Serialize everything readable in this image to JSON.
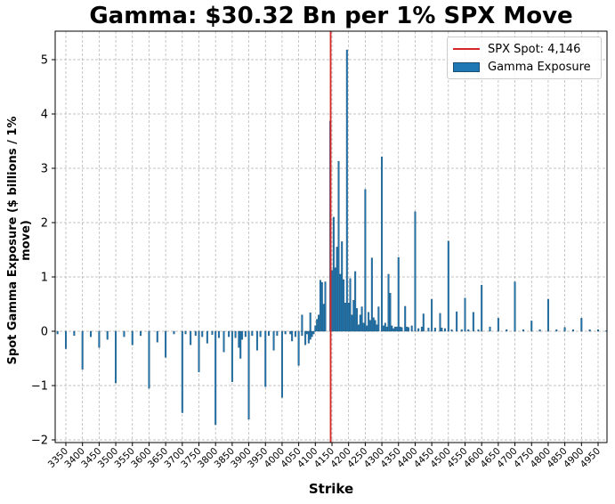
{
  "chart_data": {
    "type": "bar",
    "title": "Gamma: $30.32 Bn per 1% SPX Move",
    "xlabel": "Strike",
    "ylabel": "Spot Gamma Exposure ($ billions / 1% move)",
    "xlim": [
      3320,
      4980
    ],
    "ylim": [
      -2.05,
      5.52
    ],
    "yticks": [
      -2,
      -1,
      0,
      1,
      2,
      3,
      4,
      5
    ],
    "xticks": [
      3350,
      3400,
      3450,
      3500,
      3550,
      3600,
      3650,
      3700,
      3750,
      3800,
      3850,
      3900,
      3950,
      4000,
      4050,
      4100,
      4150,
      4200,
      4250,
      4300,
      4350,
      4400,
      4450,
      4500,
      4550,
      4600,
      4650,
      4700,
      4750,
      4800,
      4850,
      4900,
      4950
    ],
    "grid": true,
    "legend_position": "upper right",
    "legend": [
      "SPX Spot: 4,146",
      "Gamma Exposure"
    ],
    "spot": 4146,
    "bar_color": "#1f77b4",
    "spot_color": "#d62728",
    "series": [
      {
        "name": "Gamma Exposure",
        "points": [
          [
            3325,
            -0.05
          ],
          [
            3350,
            -0.32
          ],
          [
            3375,
            -0.08
          ],
          [
            3400,
            -0.7
          ],
          [
            3425,
            -0.1
          ],
          [
            3450,
            -0.3
          ],
          [
            3475,
            -0.15
          ],
          [
            3500,
            -0.95
          ],
          [
            3525,
            -0.1
          ],
          [
            3550,
            -0.25
          ],
          [
            3575,
            -0.08
          ],
          [
            3600,
            -1.05
          ],
          [
            3625,
            -0.2
          ],
          [
            3650,
            -0.48
          ],
          [
            3675,
            -0.05
          ],
          [
            3700,
            -1.5
          ],
          [
            3710,
            -0.05
          ],
          [
            3725,
            -0.25
          ],
          [
            3740,
            -0.08
          ],
          [
            3750,
            -0.75
          ],
          [
            3760,
            -0.1
          ],
          [
            3775,
            -0.22
          ],
          [
            3790,
            -0.06
          ],
          [
            3800,
            -1.72
          ],
          [
            3810,
            -0.12
          ],
          [
            3825,
            -0.38
          ],
          [
            3840,
            -0.1
          ],
          [
            3850,
            -0.93
          ],
          [
            3860,
            -0.12
          ],
          [
            3870,
            -0.3
          ],
          [
            3875,
            -0.5
          ],
          [
            3880,
            -0.15
          ],
          [
            3890,
            -0.1
          ],
          [
            3900,
            -1.62
          ],
          [
            3910,
            -0.08
          ],
          [
            3925,
            -0.35
          ],
          [
            3935,
            -0.1
          ],
          [
            3950,
            -1.02
          ],
          [
            3960,
            -0.08
          ],
          [
            3975,
            -0.35
          ],
          [
            3985,
            -0.08
          ],
          [
            4000,
            -1.22
          ],
          [
            4010,
            -0.05
          ],
          [
            4025,
            -0.05
          ],
          [
            4030,
            -0.18
          ],
          [
            4040,
            -0.1
          ],
          [
            4050,
            -0.63
          ],
          [
            4060,
            -0.08
          ],
          [
            4070,
            -0.25
          ],
          [
            4075,
            -0.05
          ],
          [
            4080,
            -0.22
          ],
          [
            4085,
            -0.15
          ],
          [
            4090,
            -0.1
          ],
          [
            4095,
            -0.05
          ],
          [
            4060,
            0.3
          ],
          [
            4085,
            0.34
          ],
          [
            4100,
            0.1
          ],
          [
            4105,
            0.22
          ],
          [
            4110,
            0.3
          ],
          [
            4115,
            0.94
          ],
          [
            4120,
            0.9
          ],
          [
            4125,
            0.5
          ],
          [
            4130,
            0.91
          ],
          [
            4145,
            3.87
          ],
          [
            4150,
            1.12
          ],
          [
            4155,
            2.1
          ],
          [
            4160,
            1.17
          ],
          [
            4165,
            1.55
          ],
          [
            4170,
            3.13
          ],
          [
            4175,
            1.05
          ],
          [
            4180,
            1.65
          ],
          [
            4185,
            0.95
          ],
          [
            4190,
            0.52
          ],
          [
            4195,
            5.18
          ],
          [
            4200,
            0.52
          ],
          [
            4205,
            0.97
          ],
          [
            4210,
            0.3
          ],
          [
            4215,
            0.57
          ],
          [
            4220,
            1.1
          ],
          [
            4225,
            0.42
          ],
          [
            4230,
            0.12
          ],
          [
            4235,
            0.3
          ],
          [
            4240,
            0.45
          ],
          [
            4245,
            0.15
          ],
          [
            4250,
            2.61
          ],
          [
            4255,
            0.1
          ],
          [
            4260,
            0.35
          ],
          [
            4265,
            0.2
          ],
          [
            4270,
            1.35
          ],
          [
            4275,
            0.25
          ],
          [
            4280,
            0.2
          ],
          [
            4285,
            0.12
          ],
          [
            4290,
            0.45
          ],
          [
            4300,
            3.21
          ],
          [
            4305,
            0.1
          ],
          [
            4310,
            0.15
          ],
          [
            4315,
            0.08
          ],
          [
            4320,
            1.05
          ],
          [
            4325,
            0.7
          ],
          [
            4330,
            0.1
          ],
          [
            4335,
            0.05
          ],
          [
            4340,
            0.08
          ],
          [
            4345,
            0.08
          ],
          [
            4350,
            1.36
          ],
          [
            4355,
            0.08
          ],
          [
            4360,
            0.07
          ],
          [
            4370,
            0.46
          ],
          [
            4375,
            0.08
          ],
          [
            4380,
            0.07
          ],
          [
            4390,
            0.1
          ],
          [
            4400,
            2.2
          ],
          [
            4410,
            0.05
          ],
          [
            4420,
            0.08
          ],
          [
            4425,
            0.32
          ],
          [
            4440,
            0.06
          ],
          [
            4450,
            0.59
          ],
          [
            4460,
            0.06
          ],
          [
            4475,
            0.33
          ],
          [
            4480,
            0.06
          ],
          [
            4490,
            0.05
          ],
          [
            4500,
            1.66
          ],
          [
            4510,
            0.03
          ],
          [
            4525,
            0.36
          ],
          [
            4540,
            0.03
          ],
          [
            4550,
            0.61
          ],
          [
            4560,
            0.03
          ],
          [
            4575,
            0.35
          ],
          [
            4590,
            0.03
          ],
          [
            4600,
            0.85
          ],
          [
            4625,
            0.08
          ],
          [
            4650,
            0.24
          ],
          [
            4675,
            0.03
          ],
          [
            4700,
            0.91
          ],
          [
            4725,
            0.03
          ],
          [
            4750,
            0.19
          ],
          [
            4775,
            0.03
          ],
          [
            4800,
            0.59
          ],
          [
            4825,
            0.03
          ],
          [
            4850,
            0.07
          ],
          [
            4875,
            0.03
          ],
          [
            4900,
            0.24
          ],
          [
            4925,
            0.03
          ],
          [
            4950,
            0.03
          ],
          [
            4975,
            0.01
          ]
        ]
      }
    ]
  }
}
